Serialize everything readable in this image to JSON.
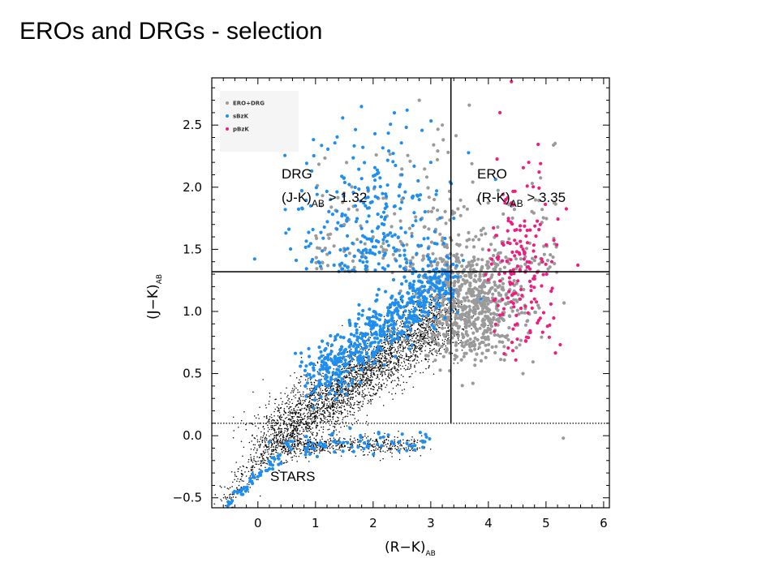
{
  "slide": {
    "title": "EROs and DRGs - selection"
  },
  "chart_data": {
    "type": "scatter",
    "xlabel": "(R−K)",
    "xlabel_sub": "AB",
    "ylabel": "(J−K)",
    "ylabel_sub": "AB",
    "xlim": [
      -0.8,
      6.1
    ],
    "ylim": [
      -0.58,
      2.88
    ],
    "x_ticks": [
      0,
      1,
      2,
      3,
      4,
      5,
      6
    ],
    "x_tick_labels": [
      "0",
      "1",
      "2",
      "3",
      "4",
      "5",
      "6"
    ],
    "y_ticks": [
      -0.5,
      0.0,
      0.5,
      1.0,
      1.5,
      2.0,
      2.5
    ],
    "y_tick_labels": [
      "−0.5",
      "0.0",
      "0.5",
      "1.0",
      "1.5",
      "2.0",
      "2.5"
    ],
    "grid": false,
    "legend_position": "top-left",
    "legend": [
      {
        "label": "ERO+DRG",
        "color": "#9a9a9a"
      },
      {
        "label": "sBzK",
        "color": "#1e8ef0"
      },
      {
        "label": "pBzK",
        "color": "#ee1e80"
      }
    ],
    "cuts": {
      "ero_rk": 3.35,
      "drg_jk": 1.32,
      "stars_jk": 0.1
    },
    "annotations": [
      {
        "id": "drg",
        "line1": "DRG",
        "line2_pre": "(J-K)",
        "line2_sub": "AB",
        "line2_post": " > 1.32"
      },
      {
        "id": "ero",
        "line1": "ERO",
        "line2_pre": "(R-K)",
        "line2_sub": "AB",
        "line2_post": " > 3.35"
      },
      {
        "id": "stars",
        "line1": "STARS"
      }
    ],
    "series": [
      {
        "id": "field",
        "color": "#000000",
        "points": [
          [
            1.6,
            0.6
          ],
          [
            2.5,
            0.75
          ],
          [
            2.0,
            0.6
          ],
          [
            1.4,
            0.45
          ],
          [
            3.0,
            0.85
          ],
          [
            1.1,
            0.35
          ],
          [
            2.8,
            0.9
          ],
          [
            0.7,
            0.15
          ],
          [
            2.3,
            0.72
          ],
          [
            1.8,
            0.55
          ]
        ]
      },
      {
        "id": "sbzk",
        "name": "sBzK",
        "color": "#1e8ef0",
        "points": [
          [
            2.9,
            1.05
          ],
          [
            3.1,
            1.2
          ],
          [
            2.7,
            1.0
          ],
          [
            3.2,
            1.3
          ],
          [
            2.5,
            0.95
          ],
          [
            3.0,
            1.4
          ],
          [
            2.6,
            1.15
          ],
          [
            3.3,
            1.1
          ],
          [
            1.8,
            0.62
          ],
          [
            1.2,
            0.4
          ],
          [
            -0.3,
            -0.45
          ],
          [
            0.0,
            -0.33
          ],
          [
            0.4,
            -0.22
          ],
          [
            2.2,
            1.6
          ],
          [
            2.8,
            1.9
          ],
          [
            3.0,
            2.2
          ],
          [
            2.5,
            2.1
          ],
          [
            3.4,
            1.75
          ],
          [
            0.2,
            -0.05
          ],
          [
            -0.5,
            -0.55
          ]
        ]
      },
      {
        "id": "ero_drg",
        "name": "ERO+DRG",
        "color": "#9a9a9a",
        "points": [
          [
            3.8,
            1.1
          ],
          [
            3.6,
            0.9
          ],
          [
            4.0,
            1.0
          ],
          [
            3.5,
            1.2
          ],
          [
            3.7,
            1.3
          ],
          [
            4.2,
            0.8
          ],
          [
            3.9,
            1.5
          ],
          [
            3.4,
            1.45
          ],
          [
            2.5,
            1.9
          ],
          [
            2.0,
            1.6
          ],
          [
            1.5,
            1.7
          ],
          [
            3.2,
            2.5
          ],
          [
            4.6,
            0.5
          ],
          [
            5.3,
            -0.02
          ],
          [
            2.8,
            2.7
          ]
        ]
      },
      {
        "id": "pbzk",
        "name": "pBzK",
        "color": "#ee1e80",
        "points": [
          [
            4.4,
            1.3
          ],
          [
            4.6,
            1.5
          ],
          [
            4.8,
            1.1
          ],
          [
            4.5,
            0.9
          ],
          [
            4.9,
            1.7
          ],
          [
            4.3,
            1.9
          ],
          [
            4.7,
            2.2
          ],
          [
            5.1,
            1.4
          ],
          [
            4.2,
            2.6
          ],
          [
            4.4,
            2.85
          ]
        ]
      }
    ]
  }
}
